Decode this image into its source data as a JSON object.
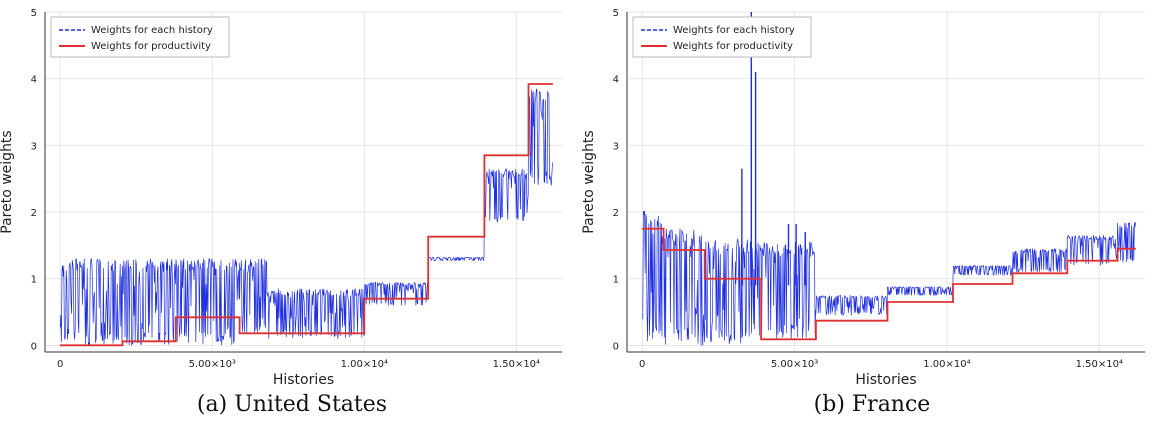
{
  "chart_data": [
    {
      "type": "line",
      "caption": "(a) United States",
      "xlabel": "Histories",
      "ylabel": "Pareto weights",
      "xlim": [
        -500,
        16500
      ],
      "ylim": [
        -0.1,
        5
      ],
      "xticks": [
        {
          "value": 0,
          "label": "0"
        },
        {
          "value": 5000,
          "label": "5.00×10³"
        },
        {
          "value": 10000,
          "label": "1.00×10⁴"
        },
        {
          "value": 15000,
          "label": "1.50×10⁴"
        }
      ],
      "yticks": [
        0,
        1,
        2,
        3,
        4,
        5
      ],
      "grid": true,
      "legend": "top-left",
      "series": [
        {
          "name": "Weights for each history",
          "style": "dashed",
          "color": "#1f2fe0",
          "bands": [
            [
              0,
              5900,
              0.0,
              1.3
            ],
            [
              5900,
              6800,
              0.15,
              1.3
            ],
            [
              6800,
              10000,
              0.1,
              0.85
            ],
            [
              10000,
              12100,
              0.6,
              0.95
            ],
            [
              12100,
              13950,
              1.27,
              1.32
            ],
            [
              13950,
              15400,
              1.85,
              2.65
            ],
            [
              15400,
              16200,
              2.4,
              3.85
            ]
          ],
          "points": [
            [
              0,
              0.35
            ],
            [
              16200,
              3.4
            ]
          ]
        },
        {
          "name": "Weights for productivity",
          "style": "solid",
          "color": "#e03030",
          "points": [
            [
              0,
              0.0
            ],
            [
              2050,
              0.0
            ],
            [
              2050,
              0.06
            ],
            [
              3800,
              0.06
            ],
            [
              3800,
              0.42
            ],
            [
              5900,
              0.42
            ],
            [
              5900,
              0.18
            ],
            [
              10000,
              0.18
            ],
            [
              10000,
              0.7
            ],
            [
              12100,
              0.7
            ],
            [
              12100,
              1.63
            ],
            [
              13950,
              1.63
            ],
            [
              13950,
              2.85
            ],
            [
              15400,
              2.85
            ],
            [
              15400,
              3.92
            ],
            [
              16200,
              3.92
            ]
          ]
        }
      ]
    },
    {
      "type": "line",
      "caption": "(b) France",
      "xlabel": "Histories",
      "ylabel": "Pareto weights",
      "xlim": [
        -500,
        16500
      ],
      "ylim": [
        -0.1,
        5
      ],
      "xticks": [
        {
          "value": 0,
          "label": "0"
        },
        {
          "value": 5000,
          "label": "5.00×10³"
        },
        {
          "value": 10000,
          "label": "1.00×10⁴"
        },
        {
          "value": 15000,
          "label": "1.50×10⁴"
        }
      ],
      "yticks": [
        0,
        1,
        2,
        3,
        4,
        5
      ],
      "grid": true,
      "legend": "top-left",
      "series": [
        {
          "name": "Weights for each history",
          "style": "dashed",
          "color": "#1f2fe0",
          "bands": [
            [
              0,
              650,
              0.0,
              2.05
            ],
            [
              650,
              2050,
              0.0,
              1.75
            ],
            [
              2050,
              3900,
              0.0,
              1.6
            ],
            [
              3900,
              5700,
              0.1,
              1.55
            ],
            [
              5700,
              8050,
              0.45,
              0.75
            ],
            [
              8050,
              10200,
              0.75,
              0.88
            ],
            [
              10200,
              12150,
              1.05,
              1.2
            ],
            [
              12150,
              13950,
              1.1,
              1.45
            ],
            [
              13950,
              15600,
              1.2,
              1.65
            ],
            [
              15600,
              16200,
              1.25,
              1.85
            ]
          ],
          "points": [
            [
              3270,
              2.65
            ],
            [
              3580,
              5.0
            ],
            [
              3720,
              4.1
            ],
            [
              4800,
              1.82
            ],
            [
              5050,
              1.82
            ],
            [
              5350,
              1.7
            ]
          ]
        },
        {
          "name": "Weights for productivity",
          "style": "solid",
          "color": "#e03030",
          "points": [
            [
              0,
              1.75
            ],
            [
              700,
              1.75
            ],
            [
              700,
              1.43
            ],
            [
              2050,
              1.43
            ],
            [
              2050,
              1.0
            ],
            [
              3900,
              1.0
            ],
            [
              3900,
              0.09
            ],
            [
              5700,
              0.09
            ],
            [
              5700,
              0.37
            ],
            [
              8050,
              0.37
            ],
            [
              8050,
              0.65
            ],
            [
              10200,
              0.65
            ],
            [
              10200,
              0.92
            ],
            [
              12150,
              0.92
            ],
            [
              12150,
              1.08
            ],
            [
              13950,
              1.08
            ],
            [
              13950,
              1.27
            ],
            [
              15600,
              1.27
            ],
            [
              15600,
              1.45
            ],
            [
              16200,
              1.45
            ]
          ]
        }
      ]
    }
  ]
}
